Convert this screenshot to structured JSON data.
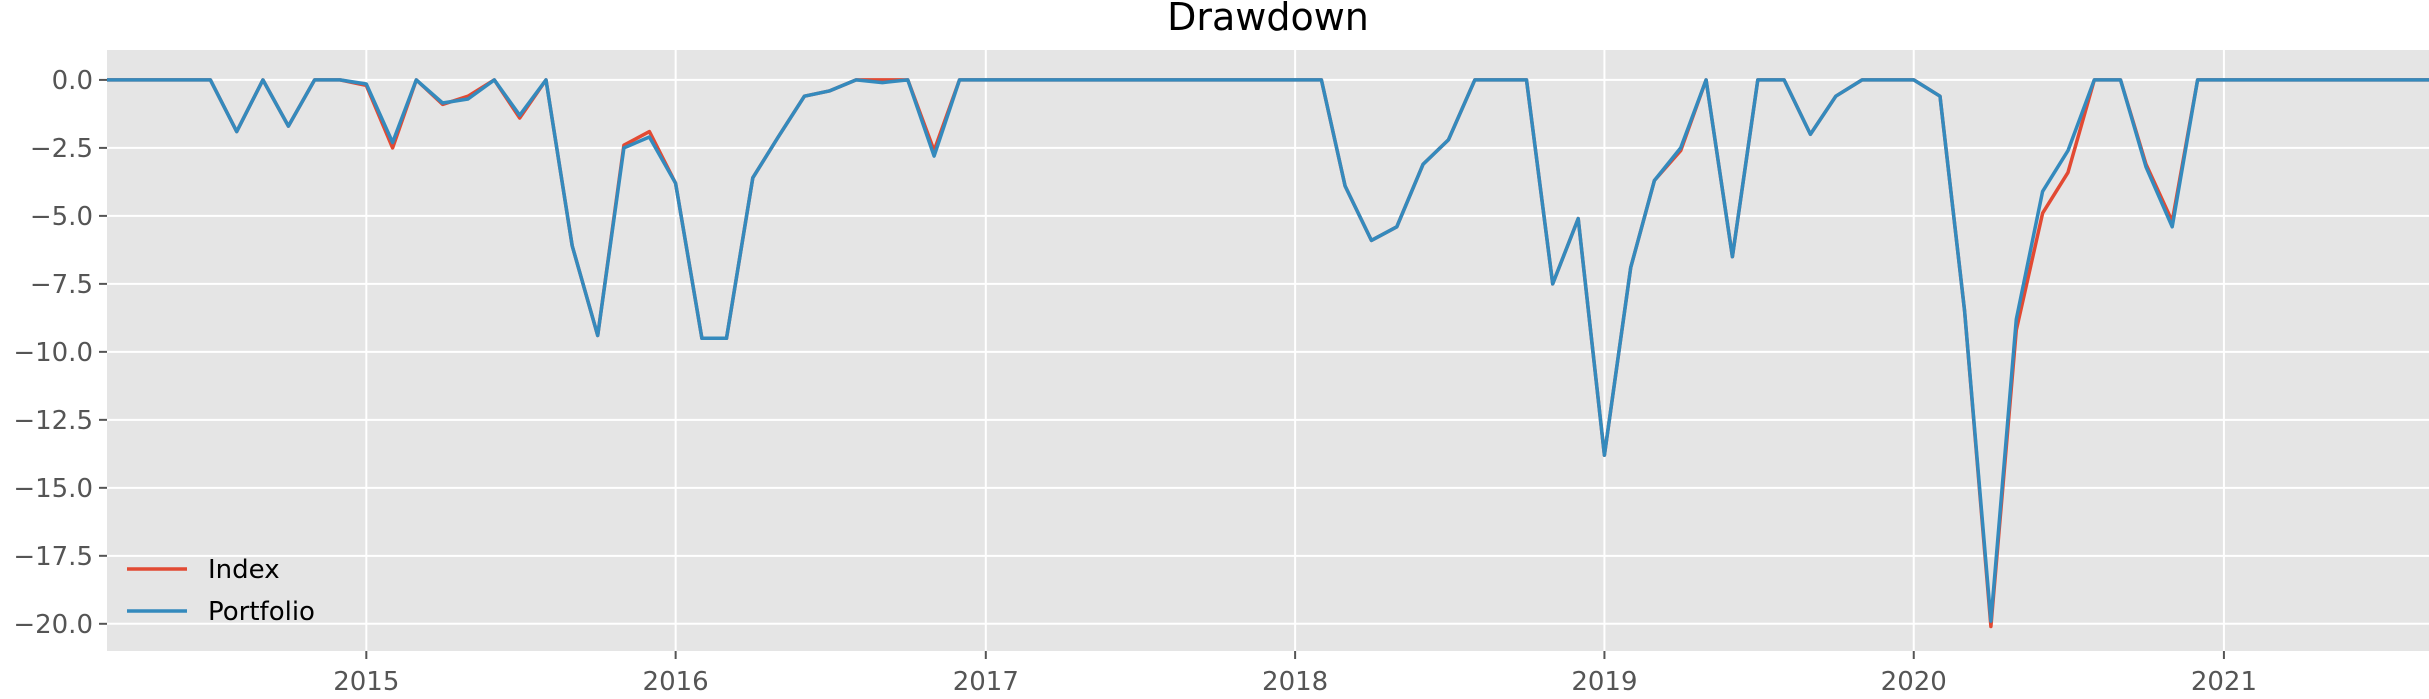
{
  "chart_data": {
    "type": "line",
    "title": "Drawdown",
    "xlabel": "",
    "ylabel": "",
    "xlim": [
      "2014-03-01",
      "2021-08-31"
    ],
    "ylim": [
      -21,
      1.1
    ],
    "x_ticks": [
      {
        "date": "2015-01-01",
        "label": "2015"
      },
      {
        "date": "2016-01-01",
        "label": "2016"
      },
      {
        "date": "2017-01-01",
        "label": "2017"
      },
      {
        "date": "2018-01-01",
        "label": "2018"
      },
      {
        "date": "2019-01-01",
        "label": "2019"
      },
      {
        "date": "2020-01-01",
        "label": "2020"
      },
      {
        "date": "2021-01-01",
        "label": "2021"
      }
    ],
    "y_ticks": [
      {
        "value": 0.0,
        "label": "0.0"
      },
      {
        "value": -2.5,
        "label": "−2.5"
      },
      {
        "value": -5.0,
        "label": "−5.0"
      },
      {
        "value": -7.5,
        "label": "−7.5"
      },
      {
        "value": -10.0,
        "label": "−10.0"
      },
      {
        "value": -12.5,
        "label": "−12.5"
      },
      {
        "value": -15.0,
        "label": "−15.0"
      },
      {
        "value": -17.5,
        "label": "−17.5"
      },
      {
        "value": -20.0,
        "label": "−20.0"
      }
    ],
    "grid": true,
    "legend": "lower-left",
    "background": "#e5e5e5",
    "grid_color": "#ffffff",
    "series": [
      {
        "name": "Index",
        "color": "#e24a33",
        "points": [
          [
            "2014-03-01",
            0
          ],
          [
            "2014-06-01",
            0
          ],
          [
            "2014-07-01",
            0
          ],
          [
            "2014-08-01",
            -1.9
          ],
          [
            "2014-09-01",
            0
          ],
          [
            "2014-10-01",
            -1.7
          ],
          [
            "2014-11-01",
            0
          ],
          [
            "2014-12-01",
            0
          ],
          [
            "2015-01-01",
            -0.2
          ],
          [
            "2015-02-01",
            -2.5
          ],
          [
            "2015-03-01",
            0
          ],
          [
            "2015-04-01",
            -0.9
          ],
          [
            "2015-05-01",
            -0.6
          ],
          [
            "2015-06-01",
            0
          ],
          [
            "2015-07-01",
            -1.4
          ],
          [
            "2015-08-01",
            0
          ],
          [
            "2015-09-01",
            -6.1
          ],
          [
            "2015-10-01",
            -9.4
          ],
          [
            "2015-11-01",
            -2.4
          ],
          [
            "2015-12-01",
            -1.9
          ],
          [
            "2016-01-01",
            -3.8
          ],
          [
            "2016-02-01",
            -9.5
          ],
          [
            "2016-03-01",
            -9.5
          ],
          [
            "2016-04-01",
            -3.6
          ],
          [
            "2016-05-01",
            -2.1
          ],
          [
            "2016-06-01",
            -0.6
          ],
          [
            "2016-07-01",
            -0.4
          ],
          [
            "2016-08-01",
            0
          ],
          [
            "2016-09-01",
            0
          ],
          [
            "2016-10-01",
            0
          ],
          [
            "2016-11-01",
            -2.6
          ],
          [
            "2016-12-01",
            0
          ],
          [
            "2018-01-01",
            0
          ],
          [
            "2018-02-01",
            0
          ],
          [
            "2018-03-01",
            -3.9
          ],
          [
            "2018-04-01",
            -5.9
          ],
          [
            "2018-05-01",
            -5.4
          ],
          [
            "2018-06-01",
            -3.1
          ],
          [
            "2018-07-01",
            -2.2
          ],
          [
            "2018-08-01",
            0
          ],
          [
            "2018-09-01",
            0
          ],
          [
            "2018-10-01",
            0
          ],
          [
            "2018-11-01",
            -7.5
          ],
          [
            "2018-12-01",
            -5.1
          ],
          [
            "2019-01-01",
            -13.8
          ],
          [
            "2019-02-01",
            -6.9
          ],
          [
            "2019-03-01",
            -3.7
          ],
          [
            "2019-04-01",
            -2.6
          ],
          [
            "2019-05-01",
            0
          ],
          [
            "2019-06-01",
            -6.5
          ],
          [
            "2019-07-01",
            0
          ],
          [
            "2019-08-01",
            0
          ],
          [
            "2019-09-01",
            -2
          ],
          [
            "2019-10-01",
            -0.6
          ],
          [
            "2019-11-01",
            0
          ],
          [
            "2019-12-01",
            0
          ],
          [
            "2020-01-01",
            0
          ],
          [
            "2020-02-01",
            -0.6
          ],
          [
            "2020-03-01",
            -8.5
          ],
          [
            "2020-04-01",
            -20.1
          ],
          [
            "2020-05-01",
            -9.2
          ],
          [
            "2020-06-01",
            -4.9
          ],
          [
            "2020-07-01",
            -3.4
          ],
          [
            "2020-08-01",
            0
          ],
          [
            "2020-09-01",
            0
          ],
          [
            "2020-10-01",
            -3.1
          ],
          [
            "2020-11-01",
            -5.2
          ],
          [
            "2020-12-01",
            0
          ],
          [
            "2021-08-31",
            0
          ]
        ]
      },
      {
        "name": "Portfolio",
        "color": "#348abd",
        "points": [
          [
            "2014-03-01",
            0
          ],
          [
            "2014-06-01",
            0
          ],
          [
            "2014-07-01",
            0
          ],
          [
            "2014-08-01",
            -1.9
          ],
          [
            "2014-09-01",
            0
          ],
          [
            "2014-10-01",
            -1.7
          ],
          [
            "2014-11-01",
            0
          ],
          [
            "2014-12-01",
            0
          ],
          [
            "2015-01-01",
            -0.15
          ],
          [
            "2015-02-01",
            -2.3
          ],
          [
            "2015-03-01",
            0
          ],
          [
            "2015-04-01",
            -0.85
          ],
          [
            "2015-05-01",
            -0.7
          ],
          [
            "2015-06-01",
            0
          ],
          [
            "2015-07-01",
            -1.3
          ],
          [
            "2015-08-01",
            0
          ],
          [
            "2015-09-01",
            -6.1
          ],
          [
            "2015-10-01",
            -9.4
          ],
          [
            "2015-11-01",
            -2.5
          ],
          [
            "2015-12-01",
            -2.1
          ],
          [
            "2016-01-01",
            -3.8
          ],
          [
            "2016-02-01",
            -9.5
          ],
          [
            "2016-03-01",
            -9.5
          ],
          [
            "2016-04-01",
            -3.6
          ],
          [
            "2016-05-01",
            -2.1
          ],
          [
            "2016-06-01",
            -0.6
          ],
          [
            "2016-07-01",
            -0.4
          ],
          [
            "2016-08-01",
            0
          ],
          [
            "2016-09-01",
            -0.1
          ],
          [
            "2016-10-01",
            0
          ],
          [
            "2016-11-01",
            -2.8
          ],
          [
            "2016-12-01",
            0
          ],
          [
            "2018-01-01",
            0
          ],
          [
            "2018-02-01",
            0
          ],
          [
            "2018-03-01",
            -3.9
          ],
          [
            "2018-04-01",
            -5.9
          ],
          [
            "2018-05-01",
            -5.4
          ],
          [
            "2018-06-01",
            -3.1
          ],
          [
            "2018-07-01",
            -2.2
          ],
          [
            "2018-08-01",
            0
          ],
          [
            "2018-09-01",
            0
          ],
          [
            "2018-10-01",
            0
          ],
          [
            "2018-11-01",
            -7.5
          ],
          [
            "2018-12-01",
            -5.1
          ],
          [
            "2019-01-01",
            -13.8
          ],
          [
            "2019-02-01",
            -6.9
          ],
          [
            "2019-03-01",
            -3.7
          ],
          [
            "2019-04-01",
            -2.5
          ],
          [
            "2019-05-01",
            0
          ],
          [
            "2019-06-01",
            -6.5
          ],
          [
            "2019-07-01",
            0
          ],
          [
            "2019-08-01",
            0
          ],
          [
            "2019-09-01",
            -2
          ],
          [
            "2019-10-01",
            -0.6
          ],
          [
            "2019-11-01",
            0
          ],
          [
            "2019-12-01",
            0
          ],
          [
            "2020-01-01",
            0
          ],
          [
            "2020-02-01",
            -0.6
          ],
          [
            "2020-03-01",
            -8.5
          ],
          [
            "2020-04-01",
            -19.9
          ],
          [
            "2020-05-01",
            -8.8
          ],
          [
            "2020-06-01",
            -4.1
          ],
          [
            "2020-07-01",
            -2.6
          ],
          [
            "2020-08-01",
            0
          ],
          [
            "2020-09-01",
            0
          ],
          [
            "2020-10-01",
            -3.2
          ],
          [
            "2020-11-01",
            -5.4
          ],
          [
            "2020-12-01",
            0
          ],
          [
            "2021-08-31",
            0
          ]
        ]
      }
    ]
  }
}
